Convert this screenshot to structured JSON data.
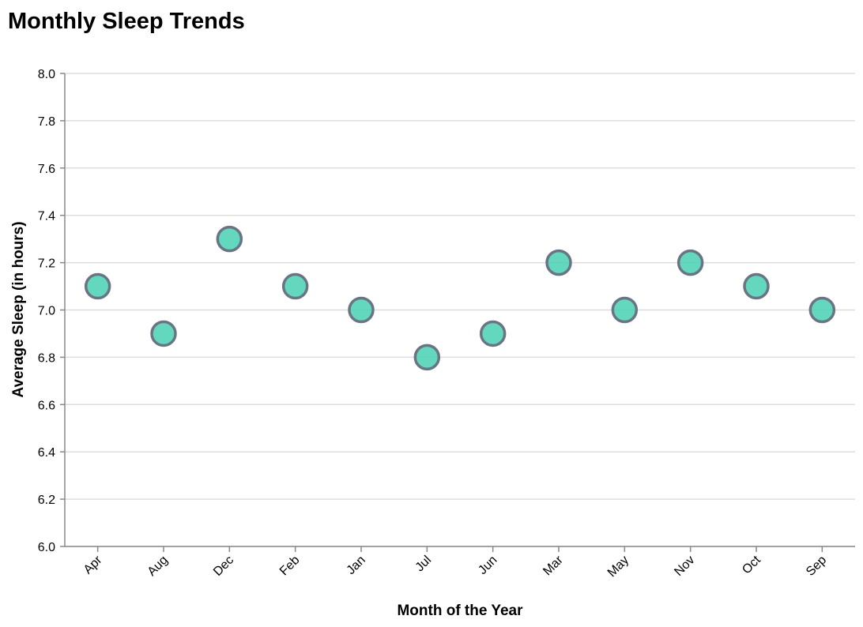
{
  "chart_data": {
    "type": "scatter",
    "title": "Monthly Sleep Trends",
    "xlabel": "Month of the Year",
    "ylabel": "Average Sleep (in hours)",
    "categories": [
      "Apr",
      "Aug",
      "Dec",
      "Feb",
      "Jan",
      "Jul",
      "Jun",
      "Mar",
      "May",
      "Nov",
      "Oct",
      "Sep"
    ],
    "values": [
      7.1,
      6.9,
      7.3,
      7.1,
      7.0,
      6.8,
      6.9,
      7.2,
      7.0,
      7.2,
      7.1,
      7.0
    ],
    "ylim": [
      6.0,
      8.0
    ],
    "yticks": [
      "6.0",
      "6.2",
      "6.4",
      "6.6",
      "6.8",
      "7.0",
      "7.2",
      "7.4",
      "7.6",
      "7.8",
      "8.0"
    ],
    "grid": true,
    "point_fill": "#48d1b4",
    "point_stroke": "#6a7584"
  }
}
